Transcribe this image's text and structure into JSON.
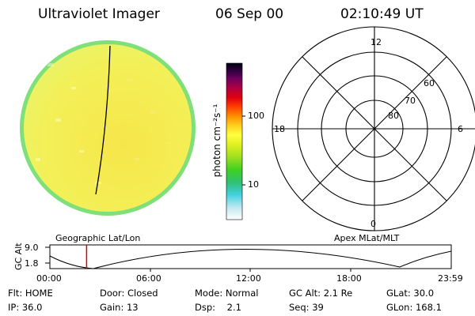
{
  "header": {
    "title": "Ultraviolet Imager",
    "date": "06 Sep 00",
    "time": "02:10:49 UT"
  },
  "geo_panel": {
    "label": "Geographic Lat/Lon"
  },
  "colorbar": {
    "unit_label": "photon cm⁻²s⁻¹",
    "tick_high": "100",
    "tick_low": "10"
  },
  "polar_plot": {
    "label": "Apex MLat/MLT",
    "mlt_labels": {
      "top": "12",
      "left": "18",
      "right": "6",
      "bottom": "0"
    },
    "lat_labels": [
      "60",
      "70",
      "80"
    ]
  },
  "timeline": {
    "ylabel": "GC Alt",
    "y_high": "9.0",
    "y_low": "1.8",
    "time_ticks": [
      "00:00",
      "06:00",
      "12:00",
      "18:00",
      "23:59"
    ],
    "current_time_fraction": 0.0915
  },
  "status": {
    "row1": [
      {
        "label": "Flt: HOME"
      },
      {
        "label": "Door: Closed"
      },
      {
        "label": "Mode: Normal"
      },
      {
        "label": "GC Alt: 2.1 Re"
      },
      {
        "label": "GLat: 30.0"
      }
    ],
    "row2": [
      {
        "label": "IP: 36.0"
      },
      {
        "label": "Gain: 13"
      },
      {
        "label": "Dsp:    2.1"
      },
      {
        "label": "Seq: 39"
      },
      {
        "label": "GLon: 168.1"
      }
    ]
  },
  "colors": {
    "disk_fill": "#f2f25a",
    "disk_edge": "#7fe07a",
    "marker": "#dd0000"
  }
}
